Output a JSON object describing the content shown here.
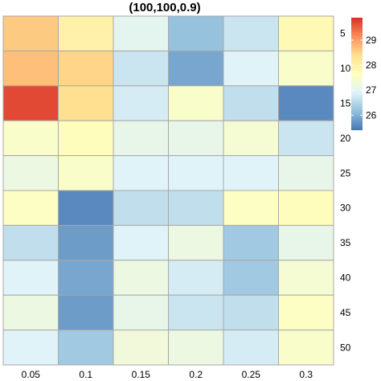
{
  "chart_data": {
    "type": "heatmap",
    "title": "(100,100,0.9)",
    "columns": [
      "0.05",
      "0.1",
      "0.15",
      "0.2",
      "0.25",
      "0.3"
    ],
    "rows": [
      "5",
      "10",
      "15",
      "20",
      "25",
      "30",
      "35",
      "40",
      "45",
      "50"
    ],
    "values": [
      [
        28.6,
        28.0,
        27.0,
        26.2,
        26.7,
        27.8
      ],
      [
        28.7,
        28.5,
        26.7,
        25.9,
        26.9,
        27.5
      ],
      [
        29.7,
        28.4,
        26.8,
        27.5,
        26.6,
        25.6
      ],
      [
        27.5,
        27.7,
        27.1,
        27.1,
        27.4,
        26.7
      ],
      [
        27.2,
        27.5,
        26.9,
        26.9,
        26.9,
        27.1
      ],
      [
        27.6,
        25.6,
        26.6,
        26.6,
        27.6,
        27.7
      ],
      [
        26.6,
        25.8,
        26.9,
        27.2,
        26.3,
        27.1
      ],
      [
        26.9,
        25.9,
        27.2,
        26.8,
        26.3,
        27.4
      ],
      [
        27.2,
        25.8,
        27.1,
        26.7,
        26.6,
        27.6
      ],
      [
        26.9,
        26.3,
        27.3,
        27.2,
        26.8,
        27.5
      ]
    ],
    "colorbar": {
      "min": 25.4,
      "max": 29.9,
      "ticks": [
        26,
        27,
        28,
        29
      ]
    },
    "palette": [
      "#4575b4",
      "#91bfdb",
      "#e0f3f8",
      "#ffffbf",
      "#fee090",
      "#fc8d59",
      "#d73027"
    ]
  }
}
